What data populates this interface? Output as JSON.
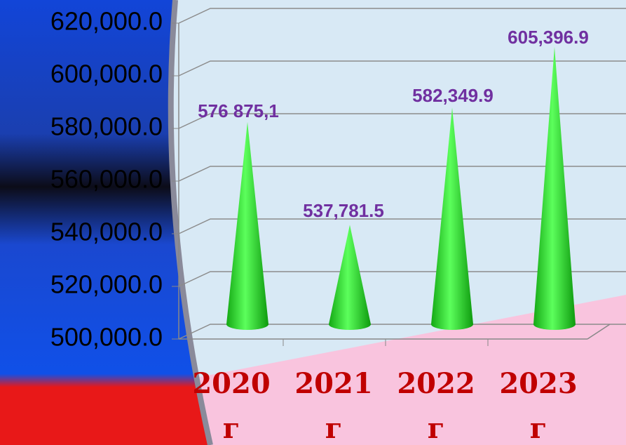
{
  "chart_data": {
    "type": "cone",
    "categories": [
      "2020 г",
      "2021 г",
      "2022 г",
      "2023 г"
    ],
    "values": [
      576875.1,
      537781.5,
      582349.9,
      605396.9
    ],
    "value_labels": [
      "576 875,1",
      "537,781.5",
      "582,349.9",
      "605,396.9"
    ],
    "color": "#22e622",
    "ylim": [
      500000,
      620000
    ],
    "yticks": [
      {
        "value": 500000,
        "label": "500,000.0"
      },
      {
        "value": 520000,
        "label": "520,000.0"
      },
      {
        "value": 540000,
        "label": "540,000.0"
      },
      {
        "value": 560000,
        "label": "560,000.0"
      },
      {
        "value": 580000,
        "label": "580,000.0"
      },
      {
        "value": 600000,
        "label": "600,000.0"
      },
      {
        "value": 620000,
        "label": "620,000.0"
      }
    ],
    "grid": true
  }
}
